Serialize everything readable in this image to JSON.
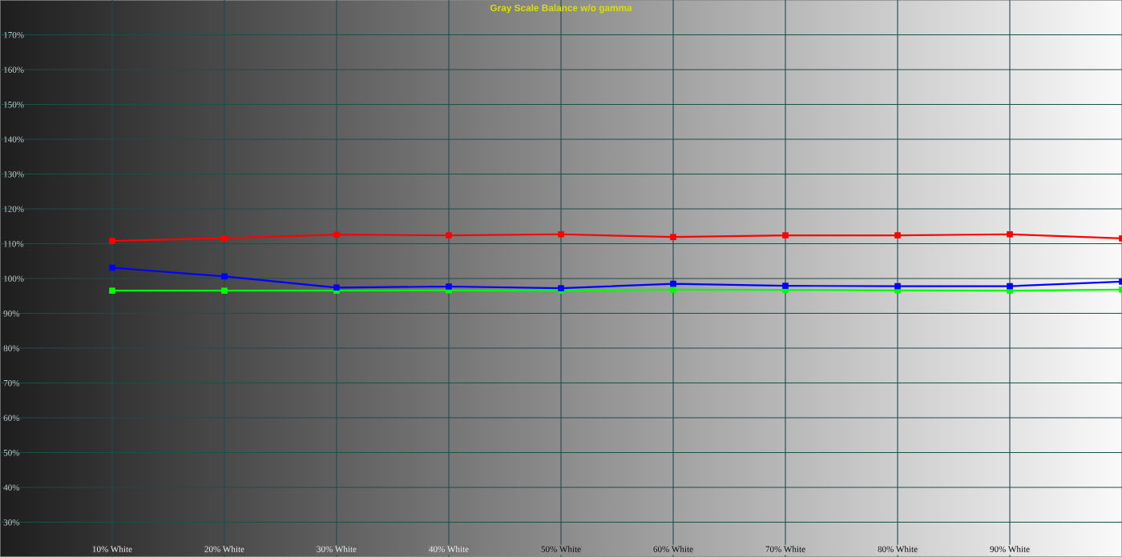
{
  "chart_data": {
    "type": "line",
    "title": "Gray Scale Balance w/o gamma",
    "x": [
      10,
      20,
      30,
      40,
      50,
      60,
      70,
      80,
      90,
      100
    ],
    "series": [
      {
        "color": "#ff0000",
        "values": [
          110.8,
          111.6,
          112.6,
          112.4,
          112.7,
          111.9,
          112.4,
          112.4,
          112.7,
          111.5
        ]
      },
      {
        "color": "#00ff00",
        "values": [
          96.5,
          96.5,
          96.5,
          96.6,
          96.5,
          96.8,
          96.7,
          96.6,
          96.5,
          96.8
        ]
      },
      {
        "color": "#0000ff",
        "values": [
          103.1,
          100.6,
          97.4,
          97.7,
          97.2,
          98.5,
          97.9,
          97.8,
          97.8,
          99.1
        ]
      }
    ],
    "xlim": [
      0,
      100
    ],
    "xticks": [
      {
        "value": 10,
        "label": "10% White"
      },
      {
        "value": 20,
        "label": "20% White"
      },
      {
        "value": 30,
        "label": "30% White"
      },
      {
        "value": 40,
        "label": "40% White"
      },
      {
        "value": 50,
        "label": "50% White"
      },
      {
        "value": 60,
        "label": "60% White"
      },
      {
        "value": 70,
        "label": "70% White"
      },
      {
        "value": 80,
        "label": "80% White"
      },
      {
        "value": 90,
        "label": "90% White"
      }
    ],
    "ylim": [
      20,
      180
    ],
    "yticks": [
      {
        "value": 30,
        "label": "30%"
      },
      {
        "value": 40,
        "label": "40%"
      },
      {
        "value": 50,
        "label": "50%"
      },
      {
        "value": 60,
        "label": "60%"
      },
      {
        "value": 70,
        "label": "70%"
      },
      {
        "value": 80,
        "label": "80%"
      },
      {
        "value": 90,
        "label": "90%"
      },
      {
        "value": 100,
        "label": "100%"
      },
      {
        "value": 110,
        "label": "110%"
      },
      {
        "value": 120,
        "label": "120%"
      },
      {
        "value": 130,
        "label": "130%"
      },
      {
        "value": 140,
        "label": "140%"
      },
      {
        "value": 150,
        "label": "150%"
      },
      {
        "value": 160,
        "label": "160%"
      },
      {
        "value": 170,
        "label": "170%"
      }
    ],
    "grid": true,
    "marker": "square",
    "line_style": "solid"
  }
}
